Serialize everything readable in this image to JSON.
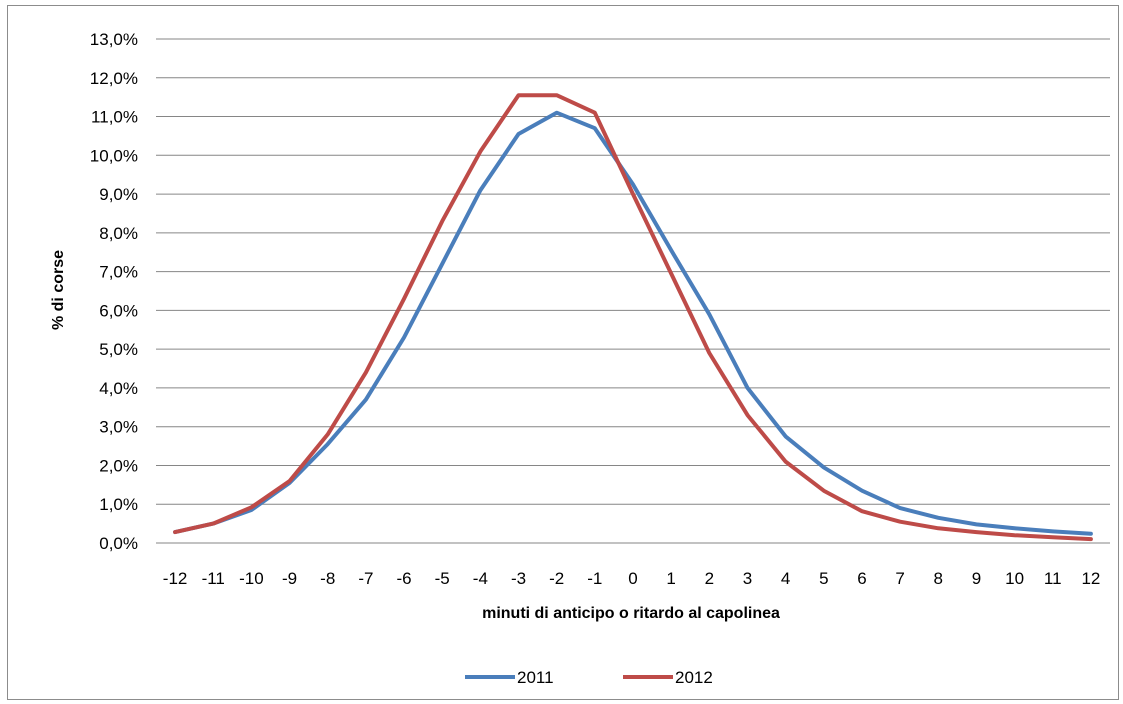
{
  "chart_data": {
    "type": "line",
    "title": "",
    "xlabel": "minuti di anticipo  o ritardo al capolinea",
    "ylabel": "% di corse",
    "categories": [
      "-12",
      "-11",
      "-10",
      "-9",
      "-8",
      "-7",
      "-6",
      "-5",
      "-4",
      "-3",
      "-2",
      "-1",
      "0",
      "1",
      "2",
      "3",
      "4",
      "5",
      "6",
      "7",
      "8",
      "9",
      "10",
      "11",
      "12"
    ],
    "y_ticks": [
      "0,0%",
      "1,0%",
      "2,0%",
      "3,0%",
      "4,0%",
      "5,0%",
      "6,0%",
      "7,0%",
      "8,0%",
      "9,0%",
      "10,0%",
      "11,0%",
      "12,0%",
      "13,0%"
    ],
    "ylim": [
      0,
      13
    ],
    "grid": "horizontal",
    "legend_position": "bottom",
    "series": [
      {
        "name": "2011",
        "color": "#4a7ebb",
        "values": [
          0.28,
          0.5,
          0.85,
          1.55,
          2.55,
          3.7,
          5.3,
          7.2,
          9.1,
          10.55,
          11.1,
          10.7,
          9.25,
          7.55,
          5.9,
          4.0,
          2.75,
          1.95,
          1.35,
          0.9,
          0.65,
          0.48,
          0.38,
          0.3,
          0.24
        ]
      },
      {
        "name": "2012",
        "color": "#be4b48",
        "values": [
          0.28,
          0.5,
          0.92,
          1.6,
          2.8,
          4.4,
          6.3,
          8.3,
          10.1,
          11.55,
          11.55,
          11.1,
          9.0,
          6.95,
          4.9,
          3.3,
          2.1,
          1.35,
          0.82,
          0.55,
          0.38,
          0.28,
          0.2,
          0.15,
          0.1
        ]
      }
    ]
  }
}
